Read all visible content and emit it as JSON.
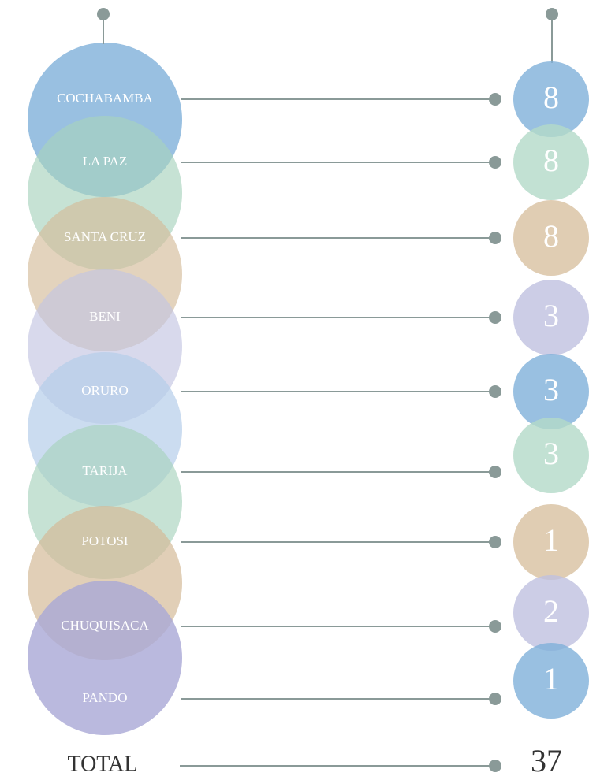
{
  "items": [
    {
      "label": "COCHABAMBA",
      "value": 8
    },
    {
      "label": "LA PAZ",
      "value": 8
    },
    {
      "label": "SANTA CRUZ",
      "value": 8
    },
    {
      "label": "BENI",
      "value": 3
    },
    {
      "label": "ORURO",
      "value": 3
    },
    {
      "label": "TARIJA",
      "value": 3
    },
    {
      "label": "POTOSI",
      "value": 1
    },
    {
      "label": "CHUQUISACA",
      "value": 2
    },
    {
      "label": "PANDO",
      "value": 1
    }
  ],
  "total": {
    "label": "TOTAL",
    "value": 37
  }
}
